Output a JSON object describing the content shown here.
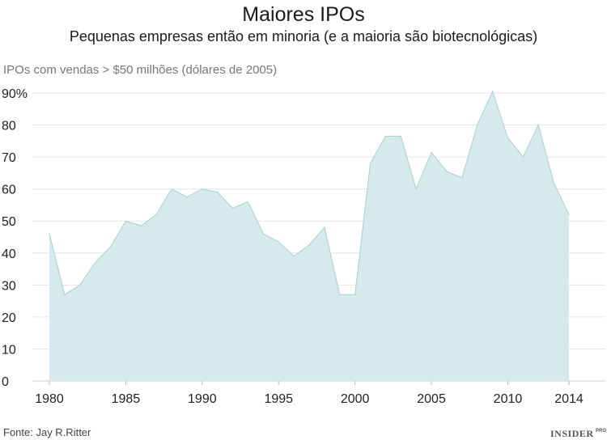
{
  "chart_data": {
    "type": "area",
    "title": "Maiores IPOs",
    "subtitle": "Pequenas empresas então em minoria (e a maioria são biotecnológicas)",
    "ylabel": "IPOs com vendas > $50 milhões (dólares de 2005)",
    "xlabel": "",
    "x": [
      1980,
      1981,
      1982,
      1983,
      1984,
      1985,
      1986,
      1987,
      1988,
      1989,
      1990,
      1991,
      1992,
      1993,
      1994,
      1995,
      1996,
      1997,
      1998,
      1999,
      2000,
      2001,
      2002,
      2003,
      2004,
      2005,
      2006,
      2007,
      2008,
      2009,
      2010,
      2011,
      2012,
      2013,
      2014
    ],
    "values": [
      46,
      27,
      30,
      37,
      42,
      50,
      48.5,
      52,
      60,
      57.5,
      60,
      59,
      54,
      56,
      46,
      43.5,
      39,
      42.5,
      48,
      27,
      27,
      68,
      76.5,
      76.5,
      60,
      71.5,
      65.5,
      63.5,
      80,
      90.5,
      76,
      70,
      80,
      62,
      52
    ],
    "ylim": [
      0,
      90
    ],
    "yticks": [
      0,
      10,
      20,
      30,
      40,
      50,
      60,
      70,
      80,
      90
    ],
    "ytick_labels": [
      "0",
      "10",
      "20",
      "30",
      "40",
      "50",
      "60",
      "70",
      "80",
      "90%"
    ],
    "xticks": [
      1980,
      1985,
      1990,
      1995,
      2000,
      2005,
      2010,
      2014
    ],
    "xtick_labels": [
      "1980",
      "1985",
      "1990",
      "1995",
      "2000",
      "2005",
      "2010",
      "2014"
    ],
    "grid": true,
    "fill_color": "#d6eaec",
    "line_color": "#a9cfd3"
  },
  "footer": {
    "source": "Fonte: Jay R.Ritter",
    "brand": "INSIDER",
    "brand_sup": "PRO"
  }
}
